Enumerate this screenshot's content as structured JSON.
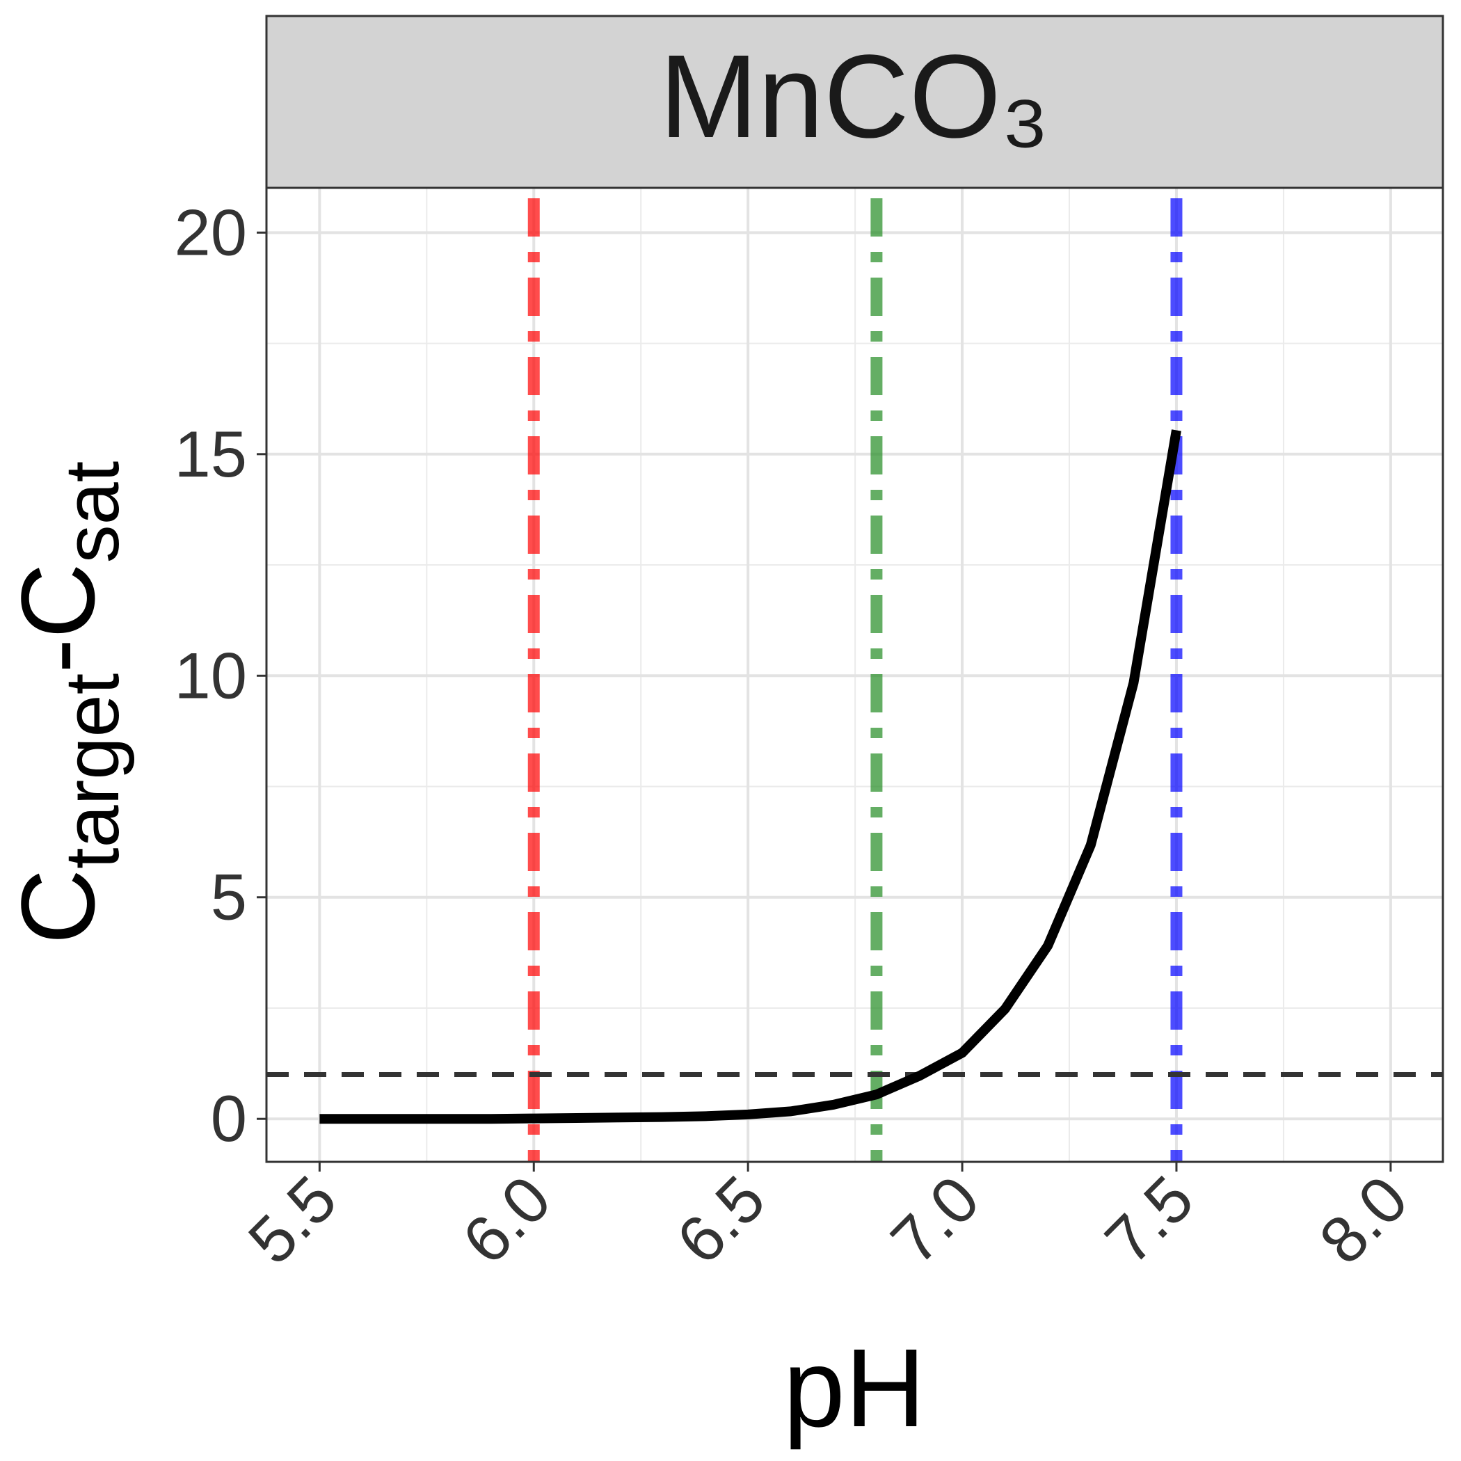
{
  "chart_data": {
    "type": "line",
    "title": "MnCO₃",
    "x_label": "pH",
    "y_label_parts": [
      "C",
      "target",
      "-C",
      "sat"
    ],
    "x": [
      5.5,
      5.6,
      5.7,
      5.8,
      5.9,
      6.0,
      6.1,
      6.2,
      6.3,
      6.4,
      6.5,
      6.6,
      6.7,
      6.8,
      6.9,
      7.0,
      7.1,
      7.2,
      7.3,
      7.4,
      7.5
    ],
    "series": [
      {
        "color": "#000000",
        "values": [
          0,
          0,
          0,
          0,
          0,
          0.01,
          0.02,
          0.03,
          0.04,
          0.06,
          0.1,
          0.17,
          0.32,
          0.55,
          0.97,
          1.49,
          2.48,
          3.91,
          6.18,
          9.84,
          15.54
        ]
      }
    ],
    "vlines": [
      {
        "x": 6.0,
        "color": "#ff0000"
      },
      {
        "x": 6.8,
        "color": "#228b22"
      },
      {
        "x": 7.5,
        "color": "#0000ff"
      }
    ],
    "hline": {
      "y": 1,
      "color": "#333333"
    },
    "xlim": [
      5.376,
      8.122
    ],
    "ylim": [
      -0.97,
      21.01
    ],
    "xticks": [
      {
        "value": 5.5,
        "label": "5.5"
      },
      {
        "value": 6.0,
        "label": "6.0"
      },
      {
        "value": 6.5,
        "label": "6.5"
      },
      {
        "value": 7.0,
        "label": "7.0"
      },
      {
        "value": 7.5,
        "label": "7.5"
      },
      {
        "value": 8.0,
        "label": "8.0"
      }
    ],
    "x_minor_ticks": [
      5.75,
      6.25,
      6.75,
      7.25,
      7.75
    ],
    "yticks": [
      0,
      5,
      10,
      15,
      20
    ],
    "y_minor_ticks": [
      2.5,
      7.5,
      12.5,
      17.5
    ],
    "grid": true
  }
}
